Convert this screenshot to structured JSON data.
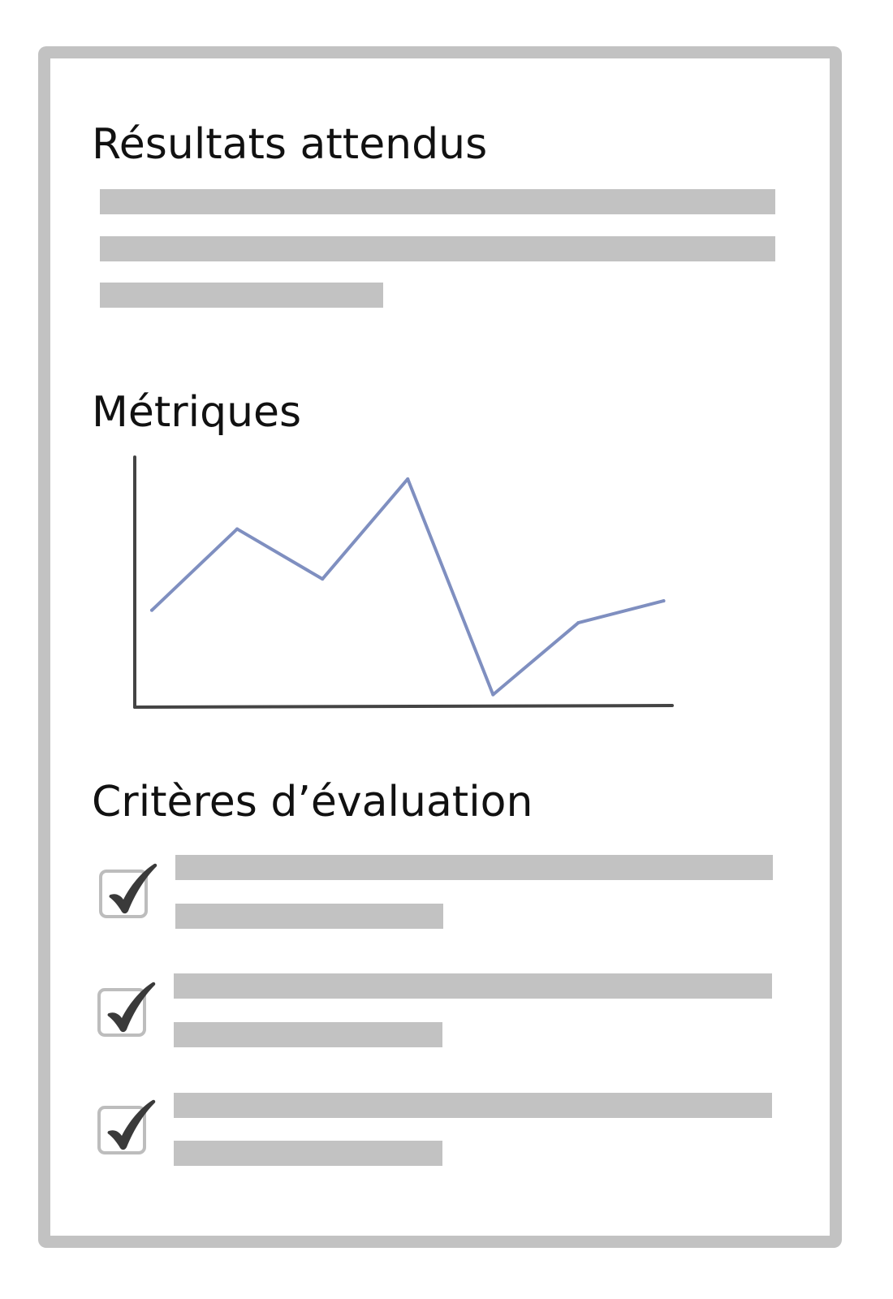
{
  "sections": {
    "expected_results": {
      "title": "Résultats attendus"
    },
    "metrics": {
      "title": "Métriques"
    },
    "evaluation_criteria": {
      "title": "Critères d’évaluation",
      "checked_count": 3
    }
  },
  "colors": {
    "frame": "#c2c2c2",
    "placeholder_bar": "#c2c2c2",
    "axis": "#444444",
    "series_line": "#7f8fc0",
    "check_mark": "#3a3a3a"
  },
  "icons": [
    "check-icon",
    "checkbox-icon"
  ],
  "chart_data": {
    "type": "line",
    "title": "",
    "xlabel": "",
    "ylabel": "",
    "grid": false,
    "x": [
      1,
      2,
      3,
      4,
      5,
      6,
      7
    ],
    "series": [
      {
        "values": [
          3.1,
          5.7,
          4.1,
          7.3,
          0.4,
          2.7,
          3.4
        ]
      }
    ],
    "xlim": [
      0.8,
      7.1
    ],
    "ylim": [
      0,
      8
    ]
  }
}
